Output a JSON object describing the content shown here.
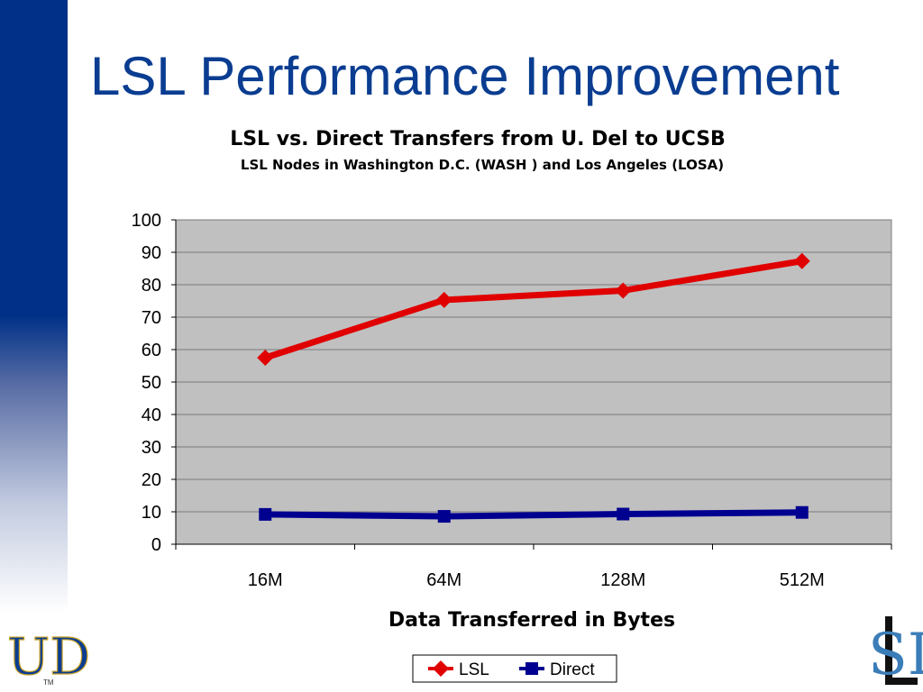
{
  "slide": {
    "title": "LSL Performance Improvement"
  },
  "colors": {
    "sidebar": "#003087",
    "title": "#0a3d91",
    "plot_background": "#c0c0c0",
    "lsl": "#e00000",
    "direct": "#000090"
  },
  "chart_data": {
    "type": "line",
    "title": "LSL vs. Direct Transfers from U. Del to UCSB",
    "subtitle": "LSL Nodes in Washington D.C. (WASH ) and Los Angeles (LOSA)",
    "xlabel": "Data Transferred in Bytes",
    "ylabel": "",
    "categories": [
      "16M",
      "64M",
      "128M",
      "512M"
    ],
    "ylim": [
      0,
      100
    ],
    "yticks": [
      0,
      10,
      20,
      30,
      40,
      50,
      60,
      70,
      80,
      90,
      100
    ],
    "grid": true,
    "legend": "bottom",
    "series": [
      {
        "name": "LSL",
        "marker": "diamond",
        "color": "#e00000",
        "values": [
          57.5,
          75.3,
          78.2,
          87.3
        ]
      },
      {
        "name": "Direct",
        "marker": "square",
        "color": "#000090",
        "values": [
          9.2,
          8.6,
          9.3,
          9.8
        ]
      }
    ]
  },
  "logos": {
    "left": "UD",
    "left_tm": "TM",
    "right": "SL"
  }
}
